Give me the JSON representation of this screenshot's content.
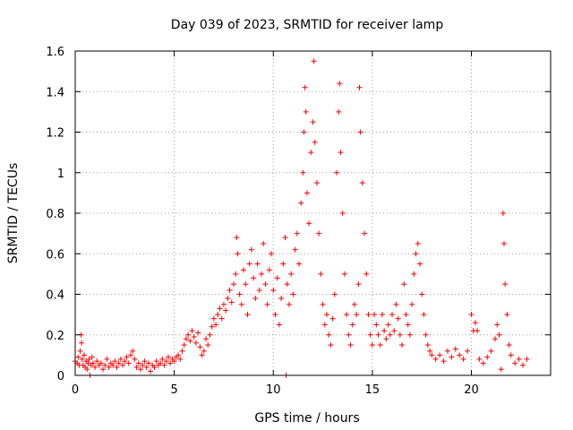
{
  "chart_data": {
    "type": "scatter",
    "title": "Day 039 of 2023, SRMTID for receiver lamp",
    "xlabel": "GPS time / hours",
    "ylabel": "SRMTID / TECUs",
    "xlim": [
      0,
      24
    ],
    "ylim": [
      0,
      1.6
    ],
    "xticks": [
      0,
      5,
      10,
      15,
      20
    ],
    "yticks": [
      0,
      0.2,
      0.4,
      0.6,
      0.8,
      1,
      1.2,
      1.4,
      1.6
    ],
    "xtick_labels": [
      "0",
      "5",
      "10",
      "15",
      "20"
    ],
    "ytick_labels": [
      "0",
      "0.2",
      "0.4",
      "0.6",
      "0.8",
      "1",
      "1.2",
      "1.4",
      "1.6"
    ],
    "grid": true,
    "marker": "+",
    "marker_color": "#ff0000",
    "series": [
      {
        "name": "SRMTID",
        "points": [
          [
            0.0,
            0.07
          ],
          [
            0.1,
            0.06
          ],
          [
            0.15,
            0.09
          ],
          [
            0.2,
            0.05
          ],
          [
            0.25,
            0.12
          ],
          [
            0.3,
            0.2
          ],
          [
            0.32,
            0.16
          ],
          [
            0.35,
            0.08
          ],
          [
            0.4,
            0.05
          ],
          [
            0.45,
            0.1
          ],
          [
            0.5,
            0.04
          ],
          [
            0.55,
            0.07
          ],
          [
            0.6,
            0.03
          ],
          [
            0.65,
            0.06
          ],
          [
            0.7,
            0.08
          ],
          [
            0.75,
            0.0
          ],
          [
            0.8,
            0.05
          ],
          [
            0.85,
            0.09
          ],
          [
            0.9,
            0.06
          ],
          [
            1.0,
            0.04
          ],
          [
            1.1,
            0.07
          ],
          [
            1.2,
            0.05
          ],
          [
            1.3,
            0.06
          ],
          [
            1.4,
            0.03
          ],
          [
            1.5,
            0.05
          ],
          [
            1.6,
            0.08
          ],
          [
            1.7,
            0.04
          ],
          [
            1.8,
            0.06
          ],
          [
            1.9,
            0.05
          ],
          [
            2.0,
            0.07
          ],
          [
            2.1,
            0.04
          ],
          [
            2.2,
            0.06
          ],
          [
            2.3,
            0.08
          ],
          [
            2.4,
            0.05
          ],
          [
            2.5,
            0.07
          ],
          [
            2.6,
            0.09
          ],
          [
            2.7,
            0.06
          ],
          [
            2.8,
            0.1
          ],
          [
            2.9,
            0.12
          ],
          [
            3.0,
            0.08
          ],
          [
            3.1,
            0.04
          ],
          [
            3.2,
            0.06
          ],
          [
            3.3,
            0.03
          ],
          [
            3.4,
            0.05
          ],
          [
            3.5,
            0.07
          ],
          [
            3.6,
            0.04
          ],
          [
            3.7,
            0.06
          ],
          [
            3.8,
            0.02
          ],
          [
            3.9,
            0.05
          ],
          [
            4.0,
            0.04
          ],
          [
            4.1,
            0.07
          ],
          [
            4.2,
            0.05
          ],
          [
            4.3,
            0.06
          ],
          [
            4.4,
            0.08
          ],
          [
            4.5,
            0.05
          ],
          [
            4.6,
            0.07
          ],
          [
            4.7,
            0.09
          ],
          [
            4.8,
            0.06
          ],
          [
            4.9,
            0.08
          ],
          [
            5.0,
            0.07
          ],
          [
            5.1,
            0.09
          ],
          [
            5.2,
            0.1
          ],
          [
            5.3,
            0.08
          ],
          [
            5.4,
            0.12
          ],
          [
            5.5,
            0.15
          ],
          [
            5.6,
            0.18
          ],
          [
            5.7,
            0.2
          ],
          [
            5.8,
            0.17
          ],
          [
            5.9,
            0.22
          ],
          [
            6.0,
            0.19
          ],
          [
            6.1,
            0.16
          ],
          [
            6.2,
            0.21
          ],
          [
            6.3,
            0.14
          ],
          [
            6.4,
            0.1
          ],
          [
            6.5,
            0.12
          ],
          [
            6.6,
            0.18
          ],
          [
            6.7,
            0.15
          ],
          [
            6.8,
            0.2
          ],
          [
            6.9,
            0.24
          ],
          [
            7.0,
            0.28
          ],
          [
            7.1,
            0.25
          ],
          [
            7.2,
            0.3
          ],
          [
            7.3,
            0.33
          ],
          [
            7.4,
            0.28
          ],
          [
            7.5,
            0.35
          ],
          [
            7.6,
            0.32
          ],
          [
            7.7,
            0.38
          ],
          [
            7.8,
            0.42
          ],
          [
            7.9,
            0.36
          ],
          [
            8.0,
            0.45
          ],
          [
            8.1,
            0.5
          ],
          [
            8.15,
            0.68
          ],
          [
            8.2,
            0.6
          ],
          [
            8.3,
            0.4
          ],
          [
            8.4,
            0.35
          ],
          [
            8.5,
            0.52
          ],
          [
            8.6,
            0.45
          ],
          [
            8.7,
            0.3
          ],
          [
            8.8,
            0.55
          ],
          [
            8.9,
            0.62
          ],
          [
            9.0,
            0.48
          ],
          [
            9.1,
            0.38
          ],
          [
            9.2,
            0.55
          ],
          [
            9.3,
            0.42
          ],
          [
            9.4,
            0.5
          ],
          [
            9.5,
            0.65
          ],
          [
            9.6,
            0.45
          ],
          [
            9.7,
            0.35
          ],
          [
            9.8,
            0.52
          ],
          [
            9.9,
            0.6
          ],
          [
            10.0,
            0.42
          ],
          [
            10.1,
            0.3
          ],
          [
            10.2,
            0.48
          ],
          [
            10.3,
            0.25
          ],
          [
            10.4,
            0.38
          ],
          [
            10.5,
            0.55
          ],
          [
            10.6,
            0.68
          ],
          [
            10.65,
            0.0
          ],
          [
            10.7,
            0.45
          ],
          [
            10.8,
            0.35
          ],
          [
            10.9,
            0.5
          ],
          [
            11.0,
            0.4
          ],
          [
            11.1,
            0.62
          ],
          [
            11.2,
            0.7
          ],
          [
            11.3,
            0.55
          ],
          [
            11.4,
            0.85
          ],
          [
            11.5,
            1.0
          ],
          [
            11.55,
            1.2
          ],
          [
            11.6,
            1.42
          ],
          [
            11.65,
            1.3
          ],
          [
            11.7,
            0.9
          ],
          [
            11.8,
            0.75
          ],
          [
            11.9,
            1.1
          ],
          [
            12.0,
            1.25
          ],
          [
            12.05,
            1.55
          ],
          [
            12.1,
            1.15
          ],
          [
            12.2,
            0.95
          ],
          [
            12.3,
            0.7
          ],
          [
            12.4,
            0.5
          ],
          [
            12.5,
            0.35
          ],
          [
            12.6,
            0.25
          ],
          [
            12.7,
            0.3
          ],
          [
            12.8,
            0.2
          ],
          [
            12.9,
            0.15
          ],
          [
            13.0,
            0.28
          ],
          [
            13.1,
            0.4
          ],
          [
            13.2,
            1.0
          ],
          [
            13.3,
            1.3
          ],
          [
            13.35,
            1.44
          ],
          [
            13.4,
            1.1
          ],
          [
            13.5,
            0.8
          ],
          [
            13.6,
            0.5
          ],
          [
            13.7,
            0.3
          ],
          [
            13.8,
            0.2
          ],
          [
            13.9,
            0.15
          ],
          [
            14.0,
            0.25
          ],
          [
            14.1,
            0.35
          ],
          [
            14.2,
            0.3
          ],
          [
            14.3,
            0.45
          ],
          [
            14.35,
            1.42
          ],
          [
            14.4,
            1.2
          ],
          [
            14.5,
            0.95
          ],
          [
            14.6,
            0.7
          ],
          [
            14.7,
            0.5
          ],
          [
            14.8,
            0.3
          ],
          [
            14.9,
            0.2
          ],
          [
            15.0,
            0.15
          ],
          [
            15.1,
            0.3
          ],
          [
            15.2,
            0.25
          ],
          [
            15.3,
            0.2
          ],
          [
            15.4,
            0.15
          ],
          [
            15.5,
            0.3
          ],
          [
            15.6,
            0.22
          ],
          [
            15.7,
            0.18
          ],
          [
            15.8,
            0.25
          ],
          [
            15.9,
            0.2
          ],
          [
            16.0,
            0.3
          ],
          [
            16.1,
            0.22
          ],
          [
            16.2,
            0.35
          ],
          [
            16.3,
            0.28
          ],
          [
            16.4,
            0.2
          ],
          [
            16.5,
            0.15
          ],
          [
            16.6,
            0.45
          ],
          [
            16.7,
            0.3
          ],
          [
            16.8,
            0.25
          ],
          [
            16.9,
            0.2
          ],
          [
            17.0,
            0.35
          ],
          [
            17.1,
            0.5
          ],
          [
            17.2,
            0.6
          ],
          [
            17.3,
            0.65
          ],
          [
            17.4,
            0.55
          ],
          [
            17.5,
            0.4
          ],
          [
            17.6,
            0.3
          ],
          [
            17.7,
            0.2
          ],
          [
            17.8,
            0.15
          ],
          [
            17.9,
            0.12
          ],
          [
            18.0,
            0.1
          ],
          [
            18.2,
            0.08
          ],
          [
            18.4,
            0.1
          ],
          [
            18.6,
            0.07
          ],
          [
            18.8,
            0.12
          ],
          [
            19.0,
            0.09
          ],
          [
            19.2,
            0.13
          ],
          [
            19.4,
            0.1
          ],
          [
            19.6,
            0.08
          ],
          [
            19.8,
            0.12
          ],
          [
            20.0,
            0.3
          ],
          [
            20.1,
            0.22
          ],
          [
            20.2,
            0.26
          ],
          [
            20.3,
            0.22
          ],
          [
            20.4,
            0.08
          ],
          [
            20.6,
            0.06
          ],
          [
            20.8,
            0.09
          ],
          [
            21.0,
            0.12
          ],
          [
            21.2,
            0.18
          ],
          [
            21.3,
            0.25
          ],
          [
            21.4,
            0.2
          ],
          [
            21.5,
            0.03
          ],
          [
            21.6,
            0.8
          ],
          [
            21.65,
            0.65
          ],
          [
            21.7,
            0.45
          ],
          [
            21.8,
            0.3
          ],
          [
            21.9,
            0.15
          ],
          [
            22.0,
            0.1
          ],
          [
            22.2,
            0.06
          ],
          [
            22.4,
            0.08
          ],
          [
            22.6,
            0.05
          ],
          [
            22.8,
            0.08
          ]
        ]
      }
    ]
  }
}
